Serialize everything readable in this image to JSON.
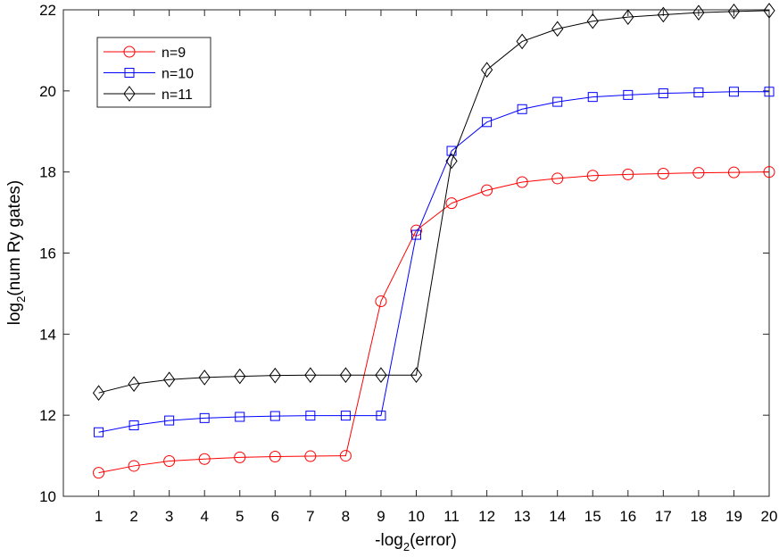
{
  "chart_data": {
    "type": "line",
    "xlabel": "-log",
    "xlabel_sub": "2",
    "xlabel_after": "(error)",
    "ylabel": "log",
    "ylabel_sub": "2",
    "ylabel_after": "(num Ry gates)",
    "x": [
      1,
      2,
      3,
      4,
      5,
      6,
      7,
      8,
      9,
      10,
      11,
      12,
      13,
      14,
      15,
      16,
      17,
      18,
      19,
      20
    ],
    "xlim": [
      0,
      20
    ],
    "ylim": [
      10,
      22
    ],
    "xticks": [
      1,
      2,
      3,
      4,
      5,
      6,
      7,
      8,
      9,
      10,
      11,
      12,
      13,
      14,
      15,
      16,
      17,
      18,
      19,
      20
    ],
    "yticks": [
      10,
      12,
      14,
      16,
      18,
      20,
      22
    ],
    "grid": false,
    "legend_position": "top-left",
    "series": [
      {
        "name": "n=9",
        "color": "#ff0000",
        "marker": "circle",
        "values": [
          10.58,
          10.75,
          10.87,
          10.92,
          10.96,
          10.98,
          10.99,
          11.0,
          14.81,
          16.56,
          17.23,
          17.55,
          17.75,
          17.84,
          17.91,
          17.94,
          17.96,
          17.98,
          17.99,
          18.0
        ]
      },
      {
        "name": "n=10",
        "color": "#0000ff",
        "marker": "square",
        "values": [
          11.58,
          11.75,
          11.87,
          11.93,
          11.96,
          11.98,
          11.99,
          11.99,
          11.99,
          16.45,
          18.52,
          19.23,
          19.55,
          19.73,
          19.85,
          19.9,
          19.94,
          19.96,
          19.98,
          19.98
        ]
      },
      {
        "name": "n=11",
        "color": "#000000",
        "marker": "diamond",
        "values": [
          12.55,
          12.77,
          12.88,
          12.93,
          12.96,
          12.98,
          12.99,
          12.99,
          12.99,
          12.99,
          18.27,
          20.52,
          21.22,
          21.53,
          21.72,
          21.82,
          21.88,
          21.93,
          21.96,
          21.98
        ]
      }
    ]
  }
}
